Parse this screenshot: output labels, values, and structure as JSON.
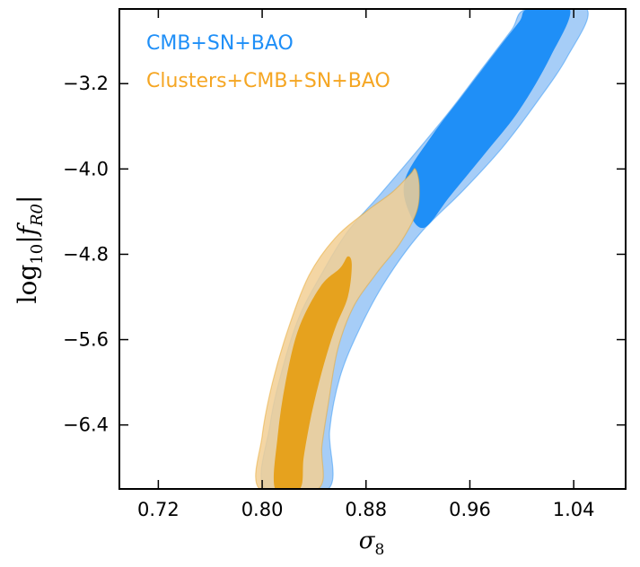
{
  "chart_data": {
    "type": "contour",
    "xlabel": "σ",
    "xlabel_sub": "8",
    "ylabel": "log",
    "ylabel_sub": "10",
    "ylabel_var": "|f",
    "ylabel_var_sub": "R0",
    "ylabel_close": "|",
    "xlim": [
      0.69,
      1.08
    ],
    "ylim": [
      -7.0,
      -2.5
    ],
    "x_ticks": [
      0.72,
      0.8,
      0.88,
      0.96,
      1.04
    ],
    "x_tick_labels": [
      "0.72",
      "0.80",
      "0.88",
      "0.96",
      "1.04"
    ],
    "y_ticks": [
      -3.2,
      -4.0,
      -4.8,
      -5.6,
      -6.4
    ],
    "y_tick_labels": [
      "−3.2",
      "−4.0",
      "−4.8",
      "−5.6",
      "−6.4"
    ],
    "legend_position": "top-left",
    "series": [
      {
        "name": "CMB+SN+BAO",
        "color_outer": "#a6cdf7",
        "color_inner": "#1f8ff7",
        "color_text": "#1f8ff7",
        "regions": [
          {
            "level": "95%",
            "points": [
              [
                0.802,
                -7.0
              ],
              [
                0.806,
                -6.4
              ],
              [
                0.815,
                -5.9
              ],
              [
                0.828,
                -5.4
              ],
              [
                0.845,
                -5.0
              ],
              [
                0.865,
                -4.6
              ],
              [
                0.89,
                -4.25
              ],
              [
                0.918,
                -3.85
              ],
              [
                0.945,
                -3.45
              ],
              [
                0.97,
                -3.05
              ],
              [
                0.992,
                -2.7
              ],
              [
                1.004,
                -2.5
              ],
              [
                1.05,
                -2.5
              ],
              [
                1.035,
                -2.95
              ],
              [
                1.01,
                -3.4
              ],
              [
                0.985,
                -3.8
              ],
              [
                0.955,
                -4.2
              ],
              [
                0.922,
                -4.6
              ],
              [
                0.895,
                -5.05
              ],
              [
                0.875,
                -5.5
              ],
              [
                0.86,
                -5.95
              ],
              [
                0.852,
                -6.45
              ],
              [
                0.851,
                -7.0
              ]
            ]
          },
          {
            "level": "68%",
            "points": [
              [
                0.91,
                -4.1
              ],
              [
                0.93,
                -3.7
              ],
              [
                0.955,
                -3.3
              ],
              [
                0.98,
                -2.9
              ],
              [
                0.998,
                -2.62
              ],
              [
                1.005,
                -2.5
              ],
              [
                1.037,
                -2.5
              ],
              [
                1.022,
                -2.95
              ],
              [
                0.998,
                -3.45
              ],
              [
                0.972,
                -3.85
              ],
              [
                0.945,
                -4.25
              ],
              [
                0.925,
                -4.55
              ],
              [
                0.913,
                -4.4
              ]
            ]
          }
        ]
      },
      {
        "name": "Clusters+CMB+SN+BAO",
        "color_outer": "#f2cf94",
        "color_inner": "#e6a21e",
        "color_text": "#f5a623",
        "regions": [
          {
            "level": "95%",
            "points": [
              [
                0.798,
                -7.0
              ],
              [
                0.8,
                -6.5
              ],
              [
                0.808,
                -6.0
              ],
              [
                0.82,
                -5.5
              ],
              [
                0.836,
                -5.0
              ],
              [
                0.856,
                -4.65
              ],
              [
                0.88,
                -4.4
              ],
              [
                0.9,
                -4.22
              ],
              [
                0.914,
                -4.05
              ],
              [
                0.918,
                -4.0
              ],
              [
                0.921,
                -4.15
              ],
              [
                0.919,
                -4.4
              ],
              [
                0.906,
                -4.7
              ],
              [
                0.888,
                -4.98
              ],
              [
                0.87,
                -5.3
              ],
              [
                0.858,
                -5.7
              ],
              [
                0.851,
                -6.2
              ],
              [
                0.846,
                -6.6
              ],
              [
                0.843,
                -7.0
              ]
            ]
          },
          {
            "level": "68%",
            "points": [
              [
                0.81,
                -7.0
              ],
              [
                0.812,
                -6.5
              ],
              [
                0.818,
                -6.0
              ],
              [
                0.828,
                -5.5
              ],
              [
                0.845,
                -5.1
              ],
              [
                0.86,
                -4.93
              ],
              [
                0.866,
                -4.82
              ],
              [
                0.869,
                -4.9
              ],
              [
                0.866,
                -5.2
              ],
              [
                0.856,
                -5.5
              ],
              [
                0.846,
                -5.9
              ],
              [
                0.838,
                -6.3
              ],
              [
                0.832,
                -6.7
              ],
              [
                0.829,
                -7.0
              ]
            ]
          }
        ]
      }
    ]
  }
}
